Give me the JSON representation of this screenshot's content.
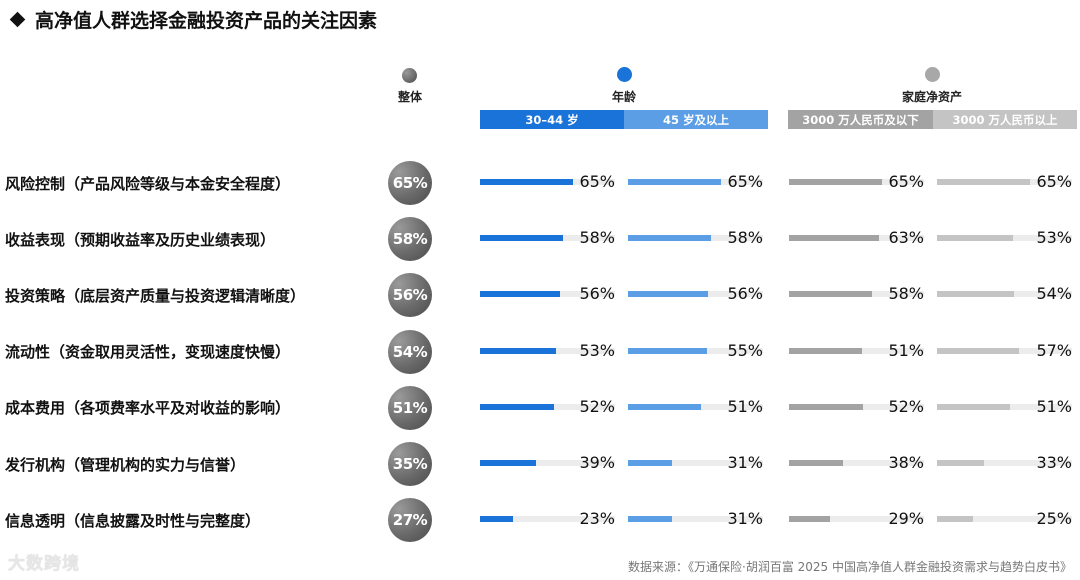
{
  "title": "高净值人群选择金融投资产品的关注因素",
  "legend": {
    "overall": {
      "label": "整体",
      "color": "#6e6e6e"
    },
    "age": {
      "label": "年龄",
      "color": "#1a73d9",
      "headers": [
        "30–44 岁",
        "45 岁及以上"
      ],
      "header_colors": [
        "#1a73d9",
        "#5b9ee6"
      ]
    },
    "assets": {
      "label": "家庭净资产",
      "color": "#a8a8a8",
      "headers": [
        "3000 万人民币及以下",
        "3000 万人民币以上"
      ],
      "header_colors": [
        "#a3a3a3",
        "#c4c4c4"
      ]
    }
  },
  "rows": [
    {
      "label": "风险控制（产品风险等级与本金安全程度）",
      "overall": "65%",
      "v": [
        "65%",
        "65%",
        "65%",
        "65%"
      ]
    },
    {
      "label": "收益表现（预期收益率及历史业绩表现）",
      "overall": "58%",
      "v": [
        "58%",
        "58%",
        "63%",
        "53%"
      ]
    },
    {
      "label": "投资策略（底层资产质量与投资逻辑清晰度）",
      "overall": "56%",
      "v": [
        "56%",
        "56%",
        "58%",
        "54%"
      ]
    },
    {
      "label": "流动性（资金取用灵活性，变现速度快慢）",
      "overall": "54%",
      "v": [
        "53%",
        "55%",
        "51%",
        "57%"
      ]
    },
    {
      "label": "成本费用（各项费率水平及对收益的影响）",
      "overall": "51%",
      "v": [
        "52%",
        "51%",
        "52%",
        "51%"
      ]
    },
    {
      "label": "发行机构（管理机构的实力与信誉）",
      "overall": "35%",
      "v": [
        "39%",
        "31%",
        "38%",
        "33%"
      ]
    },
    {
      "label": "信息透明（信息披露及时性与完整度）",
      "overall": "27%",
      "v": [
        "23%",
        "31%",
        "29%",
        "25%"
      ]
    }
  ],
  "watermark": "大数跨境",
  "source": "数据来源：《万通保险·胡润百富 2025 中国高净值人群金融投资需求与趋势白皮书》",
  "chart_data": {
    "type": "bar",
    "title": "高净值人群选择金融投资产品的关注因素",
    "categories": [
      "风险控制（产品风险等级与本金安全程度）",
      "收益表现（预期收益率及历史业绩表现）",
      "投资策略（底层资产质量与投资逻辑清晰度）",
      "流动性（资金取用灵活性，变现速度快慢）",
      "成本费用（各项费率水平及对收益的影响）",
      "发行机构（管理机构的实力与信誉）",
      "信息透明（信息披露及时性与完整度）"
    ],
    "series": [
      {
        "name": "整体",
        "values": [
          65,
          58,
          56,
          54,
          51,
          35,
          27
        ]
      },
      {
        "name": "年龄：30–44 岁",
        "values": [
          65,
          58,
          56,
          53,
          52,
          39,
          23
        ]
      },
      {
        "name": "年龄：45 岁及以上",
        "values": [
          65,
          58,
          56,
          55,
          51,
          31,
          31
        ]
      },
      {
        "name": "家庭净资产：3000 万人民币及以下",
        "values": [
          65,
          63,
          58,
          51,
          52,
          38,
          29
        ]
      },
      {
        "name": "家庭净资产：3000 万人民币以上",
        "values": [
          65,
          53,
          54,
          57,
          51,
          33,
          25
        ]
      }
    ],
    "unit": "%",
    "orientation": "horizontal",
    "xlim": [
      0,
      100
    ],
    "legend_position": "top",
    "grid": false,
    "source": "数据来源：《万通保险·胡润百富 2025 中国高净值人群金融投资需求与趋势白皮书》"
  }
}
